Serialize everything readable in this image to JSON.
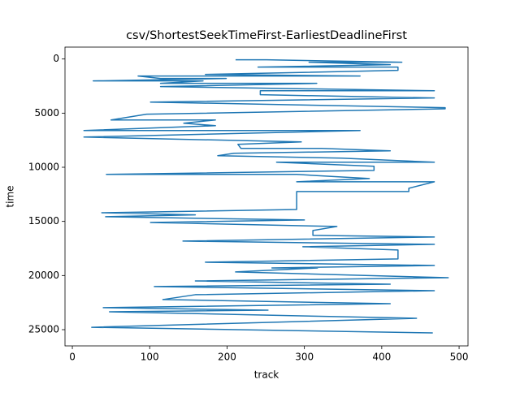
{
  "chart_data": {
    "type": "line",
    "title": "csv/ShortestSeekTimeFirst-EarliestDeadlineFirst",
    "x_label": "track",
    "y_label": "time",
    "x": [
      211,
      251,
      426,
      306,
      411,
      240,
      421,
      421,
      172,
      372,
      85,
      114,
      199,
      27,
      169,
      114,
      316,
      114,
      468,
      243,
      243,
      468,
      101,
      482,
      482,
      96,
      50,
      185,
      144,
      185,
      15,
      372,
      15,
      296,
      214,
      218,
      322,
      411,
      209,
      188,
      348,
      468,
      264,
      390,
      390,
      44,
      290,
      384,
      290,
      468,
      435,
      435,
      290,
      290,
      38,
      159,
      43,
      300,
      101,
      342,
      311,
      311,
      468,
      143,
      468,
      298,
      421,
      421,
      172,
      468,
      258,
      317,
      211,
      486,
      159,
      411,
      106,
      468,
      159,
      117,
      411,
      40,
      253,
      48,
      445,
      25,
      466
    ],
    "series": [
      {
        "color": "#1f77b4",
        "values": [
          75,
          75,
          300,
          300,
          525,
          750,
          750,
          1050,
          1425,
          1575,
          1575,
          1800,
          1800,
          2025,
          2025,
          2250,
          2250,
          2550,
          2930,
          2930,
          3300,
          3600,
          3980,
          4500,
          4600,
          5100,
          5630,
          5630,
          5930,
          6160,
          6610,
          6610,
          7210,
          7660,
          7880,
          8260,
          8260,
          8480,
          8710,
          8930,
          9160,
          9530,
          9530,
          9910,
          10290,
          10660,
          10660,
          11040,
          11340,
          11340,
          11940,
          12240,
          12240,
          13900,
          14200,
          14400,
          14570,
          14870,
          15100,
          15470,
          15840,
          16290,
          16440,
          16820,
          17120,
          17340,
          17640,
          18470,
          18770,
          19070,
          19300,
          19300,
          19670,
          20200,
          20500,
          20800,
          21020,
          21400,
          21770,
          22220,
          22600,
          22970,
          23200,
          23350,
          23950,
          24780,
          25300
        ]
      }
    ],
    "xlim": [
      -9.5,
      511.5
    ],
    "ylim": [
      -1100,
      26500
    ],
    "y_inverted": true,
    "xticks": [
      0,
      100,
      200,
      300,
      400,
      500
    ],
    "yticks": [
      0,
      5000,
      10000,
      15000,
      20000,
      25000
    ]
  }
}
